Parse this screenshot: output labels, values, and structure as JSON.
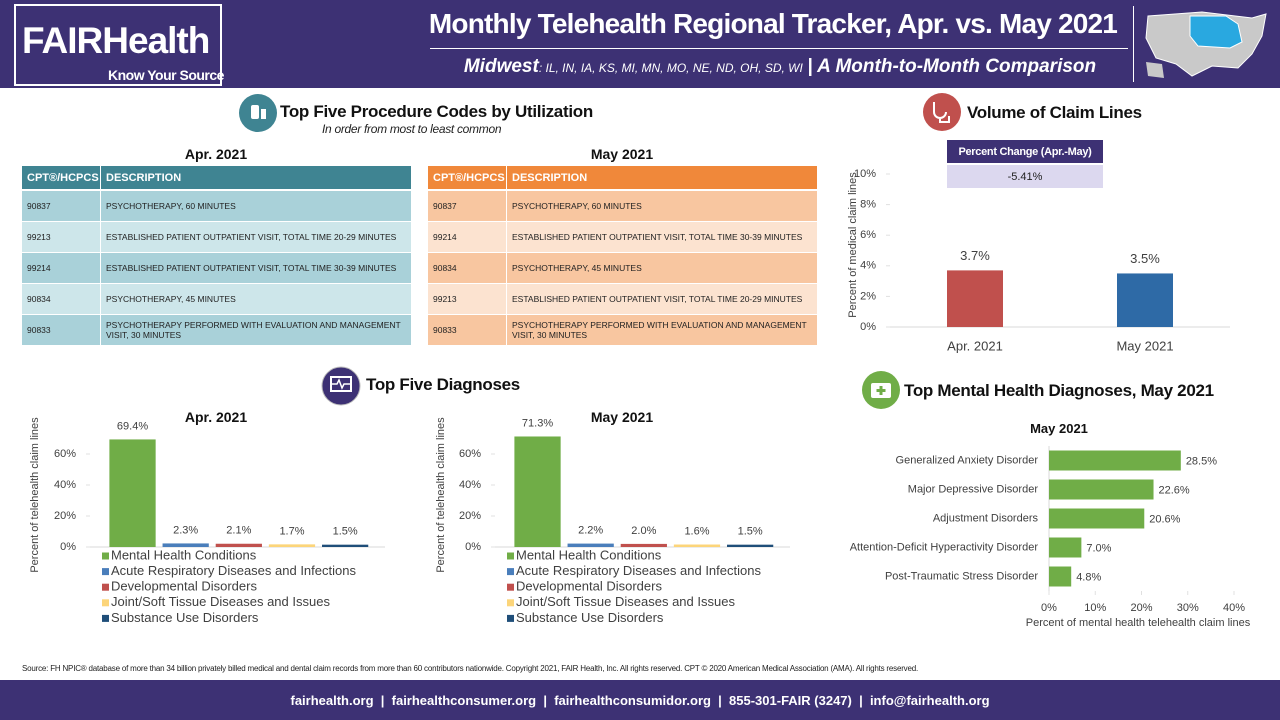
{
  "header": {
    "logo_left": "FAIR",
    "logo_right": "Health",
    "tagline": "Know Your Source",
    "title": "Monthly Telehealth Regional Tracker, Apr. vs. May 2021",
    "region": "Midwest",
    "states": ": IL, IN, IA, KS, MI, MN, MO, NE, ND, OH, SD, WI",
    "subtitle": "| A Month-to-Month Comparison"
  },
  "procedures": {
    "title": "Top Five Procedure Codes by Utilization",
    "subtitle": "In order from most to least common",
    "tables": [
      {
        "title": "Apr. 2021",
        "columns": [
          "CPT®/HCPCS",
          "DESCRIPTION"
        ],
        "rows": [
          [
            "90837",
            "PSYCHOTHERAPY, 60 MINUTES"
          ],
          [
            "99213",
            "ESTABLISHED PATIENT OUTPATIENT VISIT, TOTAL TIME 20-29 MINUTES"
          ],
          [
            "99214",
            "ESTABLISHED PATIENT OUTPATIENT VISIT, TOTAL TIME 30-39 MINUTES"
          ],
          [
            "90834",
            "PSYCHOTHERAPY, 45 MINUTES"
          ],
          [
            "90833",
            "PSYCHOTHERAPY PERFORMED WITH EVALUATION AND MANAGEMENT VISIT, 30 MINUTES"
          ]
        ]
      },
      {
        "title": "May 2021",
        "columns": [
          "CPT®/HCPCS",
          "DESCRIPTION"
        ],
        "rows": [
          [
            "90837",
            "PSYCHOTHERAPY, 60 MINUTES"
          ],
          [
            "99214",
            "ESTABLISHED PATIENT OUTPATIENT VISIT, TOTAL TIME 30-39 MINUTES"
          ],
          [
            "90834",
            "PSYCHOTHERAPY, 45 MINUTES"
          ],
          [
            "99213",
            "ESTABLISHED PATIENT OUTPATIENT VISIT, TOTAL TIME 20-29 MINUTES"
          ],
          [
            "90833",
            "PSYCHOTHERAPY PERFORMED WITH EVALUATION AND MANAGEMENT VISIT, 30 MINUTES"
          ]
        ]
      }
    ]
  },
  "diagnoses_title": "Top Five Diagnoses",
  "chart_data": [
    {
      "type": "bar",
      "title": "Volume of Claim Lines",
      "y_label": "Percent of medical claim lines",
      "change_label": "Percent Change (Apr.-May)",
      "change": "-5.41%",
      "categories": [
        "Apr. 2021",
        "May 2021"
      ],
      "values": [
        3.7,
        3.5
      ],
      "value_labels": [
        "3.7%",
        "3.5%"
      ],
      "colors": [
        "#c0504d",
        "#2e6aa6"
      ],
      "ylim": [
        0,
        10
      ],
      "yticks": [
        {
          "value": 0,
          "label": "0%"
        },
        {
          "value": 2,
          "label": "2%"
        },
        {
          "value": 4,
          "label": "4%"
        },
        {
          "value": 6,
          "label": "6%"
        },
        {
          "value": 8,
          "label": "8%"
        },
        {
          "value": 10,
          "label": "10%"
        }
      ]
    },
    {
      "type": "bar",
      "title": "Apr. 2021",
      "y_label": "Percent of telehealth claim lines",
      "series": [
        {
          "name": "Mental Health Conditions",
          "color": "#70ad47",
          "values": [
            69.4
          ],
          "value_labels": [
            "69.4%"
          ]
        },
        {
          "name": "Acute Respiratory Diseases and Infections",
          "color": "#4a7ebb",
          "values": [
            2.3
          ],
          "value_labels": [
            "2.3%"
          ]
        },
        {
          "name": "Developmental Disorders",
          "color": "#c0504d",
          "values": [
            2.1
          ],
          "value_labels": [
            "2.1%"
          ]
        },
        {
          "name": "Joint/Soft Tissue Diseases and Issues",
          "color": "#fcd57a",
          "values": [
            1.7
          ],
          "value_labels": [
            "1.7%"
          ]
        },
        {
          "name": "Substance Use Disorders",
          "color": "#1f4e79",
          "values": [
            1.5
          ],
          "value_labels": [
            "1.5%"
          ]
        }
      ],
      "ylim": [
        0,
        70
      ],
      "yticks": [
        {
          "value": 0,
          "label": "0%"
        },
        {
          "value": 20,
          "label": "20%"
        },
        {
          "value": 40,
          "label": "40%"
        },
        {
          "value": 60,
          "label": "60%"
        }
      ]
    },
    {
      "type": "bar",
      "title": "May 2021",
      "y_label": "Percent of telehealth claim lines",
      "series": [
        {
          "name": "Mental Health Conditions",
          "color": "#70ad47",
          "values": [
            71.3
          ],
          "value_labels": [
            "71.3%"
          ]
        },
        {
          "name": "Acute Respiratory Diseases and Infections",
          "color": "#4a7ebb",
          "values": [
            2.2
          ],
          "value_labels": [
            "2.2%"
          ]
        },
        {
          "name": "Developmental Disorders",
          "color": "#c0504d",
          "values": [
            2.0
          ],
          "value_labels": [
            "2.0%"
          ]
        },
        {
          "name": "Joint/Soft Tissue Diseases and Issues",
          "color": "#fcd57a",
          "values": [
            1.6
          ],
          "value_labels": [
            "1.6%"
          ]
        },
        {
          "name": "Substance Use Disorders",
          "color": "#1f4e79",
          "values": [
            1.5
          ],
          "value_labels": [
            "1.5%"
          ]
        }
      ],
      "ylim": [
        0,
        70
      ],
      "yticks": [
        {
          "value": 0,
          "label": "0%"
        },
        {
          "value": 20,
          "label": "20%"
        },
        {
          "value": 40,
          "label": "40%"
        },
        {
          "value": 60,
          "label": "60%"
        }
      ]
    },
    {
      "type": "hbar",
      "section_title": "Top Mental Health Diagnoses, May 2021",
      "title": "May 2021",
      "x_label": "Percent of mental health telehealth claim lines",
      "categories": [
        "Generalized Anxiety Disorder",
        "Major Depressive Disorder",
        "Adjustment Disorders",
        "Attention-Deficit Hyperactivity Disorder",
        "Post-Traumatic Stress Disorder"
      ],
      "values": [
        28.5,
        22.6,
        20.6,
        7.0,
        4.8
      ],
      "value_labels": [
        "28.5%",
        "22.6%",
        "20.6%",
        "7.0%",
        "4.8%"
      ],
      "color": "#70ad47",
      "xlim": [
        0,
        40
      ],
      "xticks": [
        {
          "value": 0,
          "label": "0%"
        },
        {
          "value": 10,
          "label": "10%"
        },
        {
          "value": 20,
          "label": "20%"
        },
        {
          "value": 30,
          "label": "30%"
        },
        {
          "value": 40,
          "label": "40%"
        }
      ]
    }
  ],
  "source": "Source: FH NPIC® database of more than 34 billion privately billed medical and dental claim records from more than 60 contributors nationwide. Copyright 2021, FAIR Health, Inc. All rights reserved. CPT © 2020 American Medical Association (AMA). All rights reserved.",
  "footer": "fairhealth.org  |  fairhealthconsumer.org  |  fairhealthconsumidor.org  |  855-301-FAIR (3247)  |  info@fairhealth.org"
}
